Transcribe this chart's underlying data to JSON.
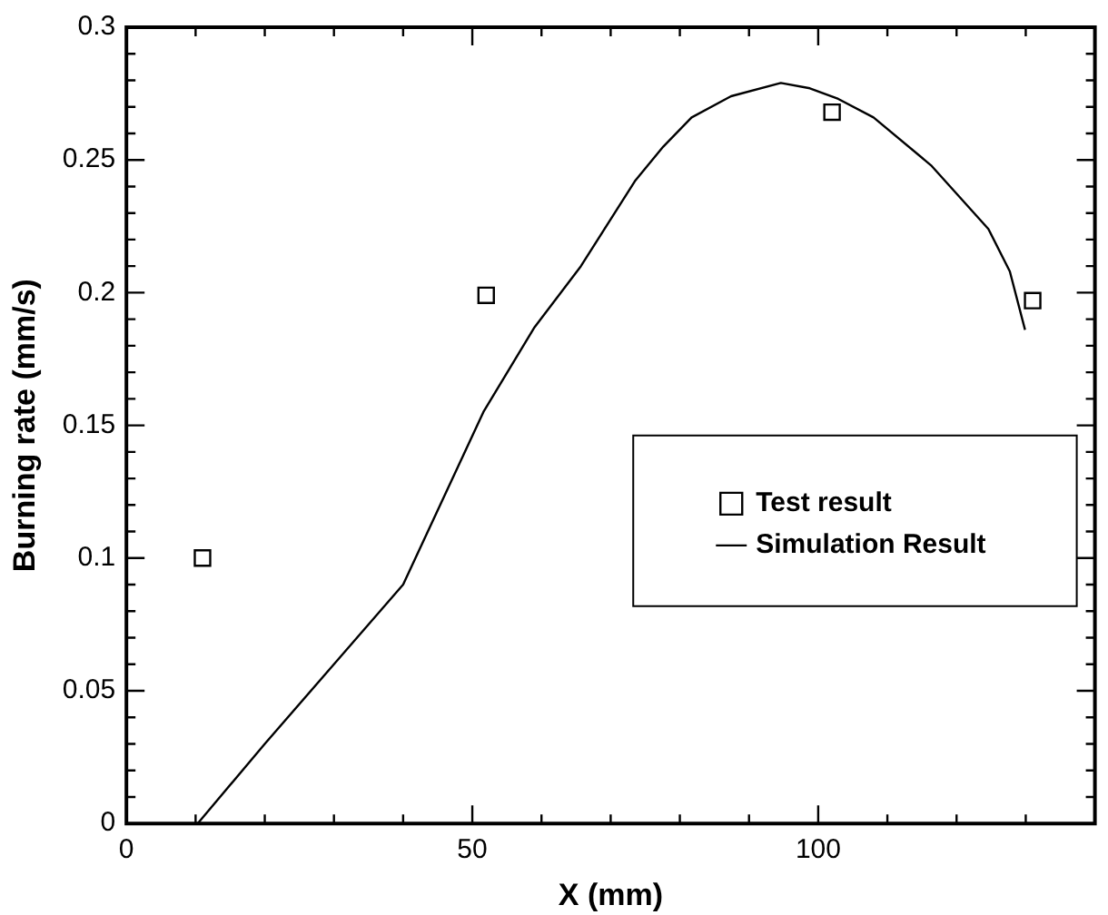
{
  "chart_data": {
    "type": "scatter",
    "xlabel": "X (mm)",
    "ylabel": "Burning rate (mm/s)",
    "xlim": [
      0,
      140
    ],
    "xticks": [
      0,
      {
        "value": 10,
        "label": null
      },
      {
        "value": 20,
        "label": null
      },
      {
        "value": 30,
        "label": null
      },
      {
        "value": 40,
        "label": null
      },
      50,
      {
        "value": 60,
        "label": null
      },
      {
        "value": 70,
        "label": null
      },
      {
        "value": 80,
        "label": null
      },
      {
        "value": 90,
        "label": null
      },
      100,
      {
        "value": 110,
        "label": null
      },
      {
        "value": 120,
        "label": null
      },
      {
        "value": 130,
        "label": null
      }
    ],
    "ylim": [
      0,
      0.3
    ],
    "yticks": [
      0,
      {
        "value": 0.01,
        "label": null
      },
      {
        "value": 0.02,
        "label": null
      },
      {
        "value": 0.03,
        "label": null
      },
      {
        "value": 0.04,
        "label": null
      },
      0.05,
      {
        "value": 0.06,
        "label": null
      },
      {
        "value": 0.07,
        "label": null
      },
      {
        "value": 0.08,
        "label": null
      },
      {
        "value": 0.09,
        "label": null
      },
      0.1,
      {
        "value": 0.11,
        "label": null
      },
      {
        "value": 0.12,
        "label": null
      },
      {
        "value": 0.13,
        "label": null
      },
      {
        "value": 0.14,
        "label": null
      },
      0.15,
      {
        "value": 0.16,
        "label": null
      },
      {
        "value": 0.17,
        "label": null
      },
      {
        "value": 0.18,
        "label": null
      },
      {
        "value": 0.19,
        "label": null
      },
      0.2,
      {
        "value": 0.21,
        "label": null
      },
      {
        "value": 0.22,
        "label": null
      },
      {
        "value": 0.23,
        "label": null
      },
      {
        "value": 0.24,
        "label": null
      },
      0.25,
      {
        "value": 0.26,
        "label": null
      },
      {
        "value": 0.27,
        "label": null
      },
      {
        "value": 0.28,
        "label": null
      },
      {
        "value": 0.29,
        "label": null
      },
      0.3
    ],
    "grid": false,
    "legend": "right",
    "series": [
      {
        "name": "Test result",
        "type": "scatter",
        "marker": "square",
        "color": "#000000",
        "x": [
          11,
          52,
          102,
          131
        ],
        "values": [
          0.1,
          0.199,
          0.268,
          0.197
        ]
      },
      {
        "name": "Simulation Result",
        "type": "line",
        "marker": "none",
        "line_style": "solid",
        "color": "#000000",
        "x": [
          10.3,
          20,
          30,
          40,
          51.6,
          59,
          65.7,
          73.5,
          77.6,
          81.7,
          87.4,
          94.6,
          98.8,
          102.9,
          108,
          116.3,
          124.6,
          127.7,
          129.9
        ],
        "values": [
          0,
          0.03,
          0.06,
          0.09,
          0.155,
          0.187,
          0.21,
          0.242,
          0.255,
          0.266,
          0.274,
          0.279,
          0.277,
          0.273,
          0.266,
          0.248,
          0.224,
          0.208,
          0.186
        ]
      }
    ]
  }
}
